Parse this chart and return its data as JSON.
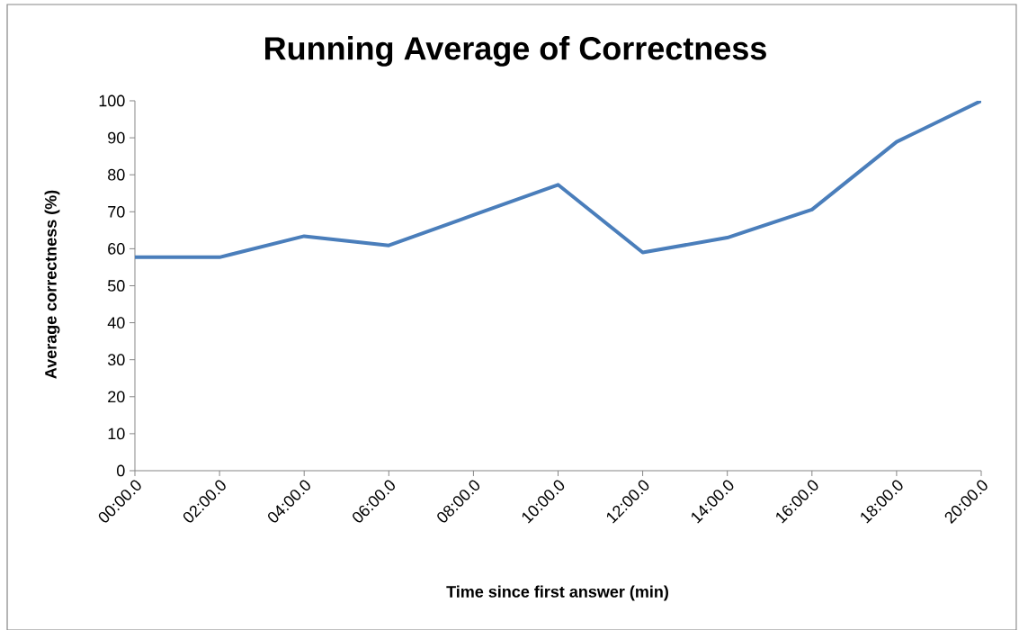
{
  "chart_data": {
    "type": "line",
    "title": "Running Average of Correctness",
    "xlabel": "Time since first answer (min)",
    "ylabel": "Average correctness (%)",
    "categories": [
      "00:00.0",
      "02:00.0",
      "04:00.0",
      "06:00.0",
      "08:00.0",
      "10:00.0",
      "12:00.0",
      "14:00.0",
      "16:00.0",
      "18:00.0",
      "20:00.0"
    ],
    "values": [
      57.7,
      57.7,
      63.4,
      60.9,
      69.1,
      77.3,
      59,
      63,
      70.6,
      88.9,
      100
    ],
    "color": "#4a7ebb",
    "ylim": [
      0,
      100
    ],
    "yticks": [
      0,
      10,
      20,
      30,
      40,
      50,
      60,
      70,
      80,
      90,
      100
    ],
    "grid": false
  }
}
